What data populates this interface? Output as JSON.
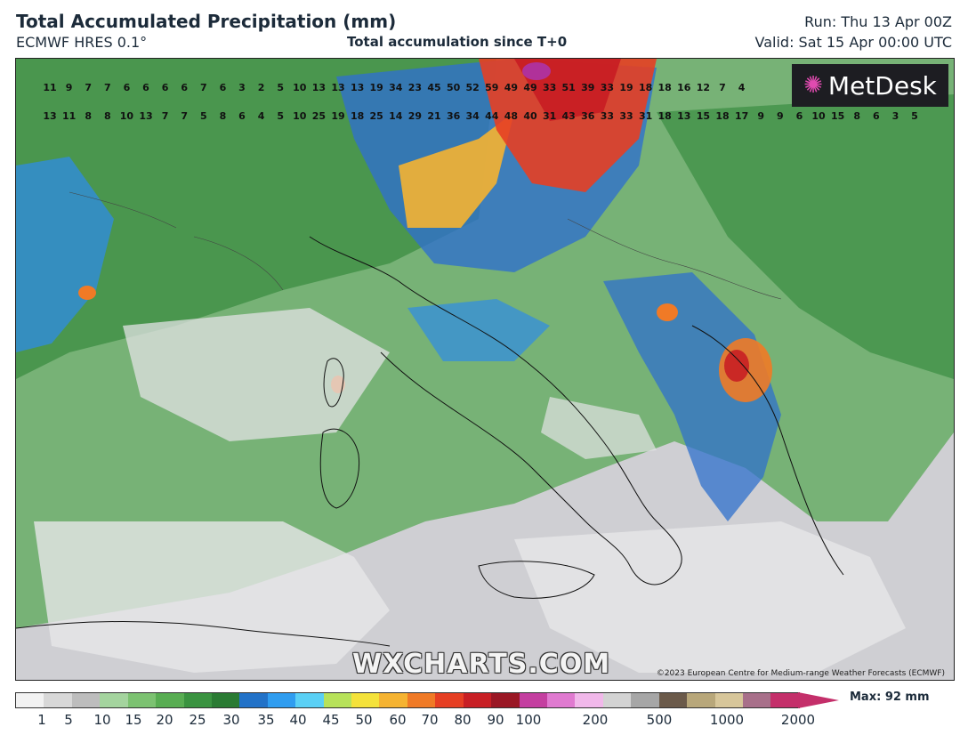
{
  "header": {
    "title": "Total Accumulated Precipitation (mm)",
    "model": "ECMWF HRES 0.1°",
    "center_subtitle": "Total accumulation since T+0",
    "run": "Run: Thu 13 Apr 00Z",
    "valid": "Valid: Sat 15 Apr 00:00 UTC"
  },
  "map": {
    "logo_text": "MetDesk",
    "watermark": "WXCHARTS.COM",
    "copyright": "©2023 European Centre for Medium-range Weather Forecasts (ECMWF)",
    "sample_values_row1": [
      "11",
      "9",
      "7",
      "7",
      "6",
      "6",
      "6",
      "6",
      "7",
      "6",
      "3",
      "2",
      "5",
      "10",
      "13",
      "13",
      "13",
      "19",
      "34",
      "23",
      "45",
      "50",
      "52",
      "59",
      "49",
      "49",
      "33",
      "51",
      "39",
      "33",
      "19",
      "18",
      "18",
      "16",
      "12",
      "7",
      "4"
    ],
    "sample_values_row2": [
      "13",
      "11",
      "8",
      "8",
      "10",
      "13",
      "7",
      "7",
      "5",
      "8",
      "6",
      "4",
      "5",
      "10",
      "25",
      "19",
      "18",
      "25",
      "14",
      "29",
      "21",
      "36",
      "34",
      "44",
      "48",
      "40",
      "31",
      "43",
      "36",
      "33",
      "33",
      "31",
      "18",
      "13",
      "15",
      "18",
      "17",
      "9",
      "9",
      "6",
      "10",
      "15",
      "8",
      "6",
      "3",
      "5"
    ]
  },
  "scale": {
    "labels": [
      "1",
      "5",
      "10",
      "15",
      "20",
      "25",
      "30",
      "35",
      "40",
      "45",
      "50",
      "60",
      "70",
      "80",
      "90",
      "100",
      "200",
      "500",
      "1000",
      "2000"
    ],
    "max_label": "Max: 92 mm",
    "colors": [
      "#f2f2f2",
      "#d8d8d8",
      "#bdbdbd",
      "#a4d49e",
      "#7cc271",
      "#58ad52",
      "#3a9340",
      "#2a7b33",
      "#2272c8",
      "#2f9df0",
      "#5ad0f5",
      "#b7e25a",
      "#f4e23a",
      "#f5b331",
      "#f07a26",
      "#e63f23",
      "#c81f24",
      "#9a1724",
      "#c43fa0",
      "#e07ad0",
      "#f1b8ea",
      "#d3d3d3",
      "#a6a6a6",
      "#6b5a4a",
      "#b8a77a",
      "#d7c69a",
      "#a8708a",
      "#c42f6a"
    ]
  }
}
